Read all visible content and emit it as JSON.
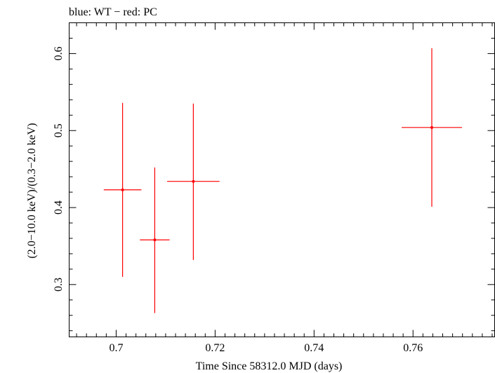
{
  "chart_data": {
    "type": "scatter",
    "title": "blue: WT − red: PC",
    "xlabel": "Time Since 58312.0 MJD (days)",
    "ylabel": "(2.0−10.0 keV)/(0.3−2.0 keV)",
    "xlim": [
      0.6905,
      0.7765
    ],
    "ylim": [
      0.232,
      0.64
    ],
    "x_ticks": [
      {
        "value": 0.7,
        "label": "0.7"
      },
      {
        "value": 0.72,
        "label": "0.72"
      },
      {
        "value": 0.74,
        "label": "0.74"
      },
      {
        "value": 0.76,
        "label": "0.76"
      }
    ],
    "y_ticks": [
      {
        "value": 0.3,
        "label": "0.3"
      },
      {
        "value": 0.4,
        "label": "0.4"
      },
      {
        "value": 0.5,
        "label": "0.5"
      },
      {
        "value": 0.6,
        "label": "0.6"
      }
    ],
    "grid": false,
    "series": [
      {
        "color": "#ff0000",
        "points": [
          {
            "x": 0.7013,
            "y": 0.423,
            "xerr": 0.0038,
            "ylo": 0.31,
            "yhi": 0.536
          },
          {
            "x": 0.7078,
            "y": 0.358,
            "xerr": 0.003,
            "ylo": 0.263,
            "yhi": 0.452
          },
          {
            "x": 0.7156,
            "y": 0.434,
            "xerr": 0.0053,
            "ylo": 0.332,
            "yhi": 0.535
          },
          {
            "x": 0.7638,
            "y": 0.504,
            "xerr": 0.0061,
            "ylo": 0.401,
            "yhi": 0.607
          }
        ]
      }
    ]
  }
}
